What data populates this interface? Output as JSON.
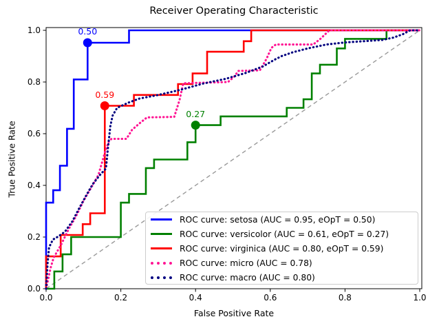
{
  "chart_data": {
    "type": "line",
    "title": "Receiver Operating Characteristic",
    "xlabel": "False Positive Rate",
    "ylabel": "True Positive Rate",
    "xlim": [
      0.0,
      1.0
    ],
    "ylim": [
      0.0,
      1.0
    ],
    "grid": false,
    "legend_position": "lower right",
    "x_ticks": [
      {
        "v": 0.0,
        "label": "0.0"
      },
      {
        "v": 0.2,
        "label": "0.2"
      },
      {
        "v": 0.4,
        "label": "0.4"
      },
      {
        "v": 0.6,
        "label": "0.6"
      },
      {
        "v": 0.8,
        "label": "0.8"
      },
      {
        "v": 1.0,
        "label": "1.0"
      }
    ],
    "y_ticks": [
      {
        "v": 0.0,
        "label": "0.0"
      },
      {
        "v": 0.2,
        "label": "0.2"
      },
      {
        "v": 0.4,
        "label": "0.4"
      },
      {
        "v": 0.6,
        "label": "0.6"
      },
      {
        "v": 0.8,
        "label": "0.8"
      },
      {
        "v": 1.0,
        "label": "1.0"
      }
    ],
    "diagonal": {
      "name": "chance-line",
      "color": "#999999",
      "style": "dashed",
      "points": [
        [
          0,
          0
        ],
        [
          1,
          1
        ]
      ]
    },
    "series": [
      {
        "name": "ROC curve: setosa (AUC = 0.95, eOpT = 0.50)",
        "color": "#0000ff",
        "style": "solid",
        "auc": 0.95,
        "eopt": 0.5,
        "marker": {
          "x": 0.111,
          "y": 0.952,
          "label": "0.50"
        },
        "points": [
          [
            0,
            0
          ],
          [
            0,
            0.333
          ],
          [
            0.019,
            0.333
          ],
          [
            0.019,
            0.381
          ],
          [
            0.037,
            0.381
          ],
          [
            0.037,
            0.476
          ],
          [
            0.056,
            0.476
          ],
          [
            0.056,
            0.619
          ],
          [
            0.074,
            0.619
          ],
          [
            0.074,
            0.81
          ],
          [
            0.111,
            0.81
          ],
          [
            0.111,
            0.952
          ],
          [
            0.222,
            0.952
          ],
          [
            0.222,
            1
          ],
          [
            1,
            1
          ]
        ]
      },
      {
        "name": "ROC curve: versicolor (AUC = 0.61, eOpT = 0.27)",
        "color": "#008000",
        "style": "solid",
        "auc": 0.61,
        "eopt": 0.27,
        "marker": {
          "x": 0.4,
          "y": 0.633,
          "label": "0.27"
        },
        "points": [
          [
            0,
            0
          ],
          [
            0.022,
            0
          ],
          [
            0.022,
            0.067
          ],
          [
            0.044,
            0.067
          ],
          [
            0.044,
            0.133
          ],
          [
            0.067,
            0.133
          ],
          [
            0.067,
            0.2
          ],
          [
            0.2,
            0.2
          ],
          [
            0.2,
            0.333
          ],
          [
            0.222,
            0.333
          ],
          [
            0.222,
            0.367
          ],
          [
            0.267,
            0.367
          ],
          [
            0.267,
            0.467
          ],
          [
            0.289,
            0.467
          ],
          [
            0.289,
            0.5
          ],
          [
            0.378,
            0.5
          ],
          [
            0.378,
            0.567
          ],
          [
            0.4,
            0.567
          ],
          [
            0.4,
            0.633
          ],
          [
            0.467,
            0.633
          ],
          [
            0.467,
            0.667
          ],
          [
            0.644,
            0.667
          ],
          [
            0.644,
            0.7
          ],
          [
            0.689,
            0.7
          ],
          [
            0.689,
            0.733
          ],
          [
            0.711,
            0.733
          ],
          [
            0.711,
            0.833
          ],
          [
            0.733,
            0.833
          ],
          [
            0.733,
            0.867
          ],
          [
            0.778,
            0.867
          ],
          [
            0.778,
            0.93
          ],
          [
            0.8,
            0.93
          ],
          [
            0.8,
            0.967
          ],
          [
            0.911,
            0.967
          ],
          [
            0.911,
            1
          ],
          [
            1,
            1
          ]
        ]
      },
      {
        "name": "ROC curve: virginica (AUC = 0.80, eOpT = 0.59)",
        "color": "#ff0000",
        "style": "solid",
        "auc": 0.8,
        "eopt": 0.59,
        "marker": {
          "x": 0.157,
          "y": 0.708,
          "label": "0.59"
        },
        "points": [
          [
            0,
            0
          ],
          [
            0,
            0.125
          ],
          [
            0.039,
            0.125
          ],
          [
            0.039,
            0.208
          ],
          [
            0.098,
            0.208
          ],
          [
            0.098,
            0.25
          ],
          [
            0.118,
            0.25
          ],
          [
            0.118,
            0.292
          ],
          [
            0.157,
            0.292
          ],
          [
            0.157,
            0.708
          ],
          [
            0.235,
            0.708
          ],
          [
            0.235,
            0.75
          ],
          [
            0.353,
            0.75
          ],
          [
            0.353,
            0.792
          ],
          [
            0.392,
            0.792
          ],
          [
            0.392,
            0.833
          ],
          [
            0.431,
            0.833
          ],
          [
            0.431,
            0.917
          ],
          [
            0.529,
            0.917
          ],
          [
            0.529,
            0.958
          ],
          [
            0.549,
            0.958
          ],
          [
            0.549,
            1
          ],
          [
            1,
            1
          ]
        ]
      },
      {
        "name": "ROC curve: micro (AUC = 0.78)",
        "color": "#ff1493",
        "style": "dotted",
        "auc": 0.78,
        "points": [
          [
            0,
            0
          ],
          [
            0.006,
            0.04
          ],
          [
            0.012,
            0.08
          ],
          [
            0.02,
            0.12
          ],
          [
            0.04,
            0.17
          ],
          [
            0.06,
            0.23
          ],
          [
            0.08,
            0.28
          ],
          [
            0.1,
            0.34
          ],
          [
            0.12,
            0.39
          ],
          [
            0.14,
            0.44
          ],
          [
            0.15,
            0.49
          ],
          [
            0.158,
            0.53
          ],
          [
            0.168,
            0.57
          ],
          [
            0.175,
            0.58
          ],
          [
            0.215,
            0.58
          ],
          [
            0.23,
            0.615
          ],
          [
            0.25,
            0.64
          ],
          [
            0.27,
            0.663
          ],
          [
            0.343,
            0.665
          ],
          [
            0.357,
            0.73
          ],
          [
            0.367,
            0.795
          ],
          [
            0.487,
            0.8
          ],
          [
            0.503,
            0.82
          ],
          [
            0.515,
            0.843
          ],
          [
            0.572,
            0.845
          ],
          [
            0.59,
            0.89
          ],
          [
            0.603,
            0.932
          ],
          [
            0.615,
            0.945
          ],
          [
            0.715,
            0.945
          ],
          [
            0.735,
            0.968
          ],
          [
            0.758,
            1
          ],
          [
            1,
            1
          ]
        ]
      },
      {
        "name": "ROC curve: macro (AUC = 0.80)",
        "color": "#000080",
        "style": "dotted",
        "auc": 0.8,
        "points": [
          [
            0,
            0
          ],
          [
            0.004,
            0.1
          ],
          [
            0.008,
            0.16
          ],
          [
            0.018,
            0.19
          ],
          [
            0.03,
            0.2
          ],
          [
            0.05,
            0.22
          ],
          [
            0.07,
            0.26
          ],
          [
            0.088,
            0.31
          ],
          [
            0.107,
            0.36
          ],
          [
            0.125,
            0.405
          ],
          [
            0.144,
            0.44
          ],
          [
            0.16,
            0.465
          ],
          [
            0.166,
            0.55
          ],
          [
            0.172,
            0.63
          ],
          [
            0.178,
            0.67
          ],
          [
            0.19,
            0.7
          ],
          [
            0.22,
            0.72
          ],
          [
            0.25,
            0.736
          ],
          [
            0.3,
            0.75
          ],
          [
            0.36,
            0.77
          ],
          [
            0.42,
            0.794
          ],
          [
            0.48,
            0.812
          ],
          [
            0.534,
            0.835
          ],
          [
            0.58,
            0.86
          ],
          [
            0.61,
            0.885
          ],
          [
            0.63,
            0.9
          ],
          [
            0.66,
            0.915
          ],
          [
            0.7,
            0.93
          ],
          [
            0.75,
            0.945
          ],
          [
            0.8,
            0.953
          ],
          [
            0.85,
            0.958
          ],
          [
            0.9,
            0.963
          ],
          [
            0.93,
            0.972
          ],
          [
            0.955,
            0.985
          ],
          [
            0.974,
            1
          ],
          [
            1,
            1
          ]
        ]
      }
    ]
  }
}
